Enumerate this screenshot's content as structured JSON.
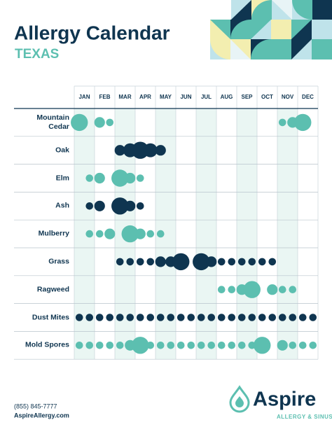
{
  "header": {
    "title": "Allergy Calendar",
    "subtitle": "TEXAS"
  },
  "months": [
    "JAN",
    "FEB",
    "MAR",
    "APR",
    "MAY",
    "JUN",
    "JUL",
    "AUG",
    "SEP",
    "OCT",
    "NOV",
    "DEC"
  ],
  "rows": [
    {
      "name": "Mountain Cedar",
      "color": "#5cbfb0",
      "levels": [
        4,
        null,
        2,
        1,
        null,
        null,
        null,
        null,
        null,
        null,
        null,
        null,
        null,
        null,
        null,
        null,
        null,
        null,
        null,
        null,
        1,
        2,
        4,
        null
      ]
    },
    {
      "name": "Oak",
      "color": "#0f3550",
      "levels": [
        null,
        null,
        null,
        null,
        2,
        3,
        4,
        3,
        2,
        null,
        null,
        null,
        null,
        null,
        null,
        null,
        null,
        null,
        null,
        null,
        null,
        null,
        null,
        null
      ]
    },
    {
      "name": "Elm",
      "color": "#5cbfb0",
      "levels": [
        null,
        1,
        2,
        null,
        4,
        2,
        1,
        null,
        null,
        null,
        null,
        null,
        null,
        null,
        null,
        null,
        null,
        null,
        null,
        null,
        null,
        null,
        null,
        null
      ]
    },
    {
      "name": "Ash",
      "color": "#0f3550",
      "levels": [
        null,
        1,
        2,
        null,
        4,
        2,
        1,
        null,
        null,
        null,
        null,
        null,
        null,
        null,
        null,
        null,
        null,
        null,
        null,
        null,
        null,
        null,
        null,
        null
      ]
    },
    {
      "name": "Mulberry",
      "color": "#5cbfb0",
      "levels": [
        null,
        1,
        1,
        2,
        null,
        4,
        2,
        1,
        1,
        null,
        null,
        null,
        null,
        null,
        null,
        null,
        null,
        null,
        null,
        null,
        null,
        null,
        null,
        null
      ]
    },
    {
      "name": "Grass",
      "color": "#0f3550",
      "levels": [
        null,
        null,
        null,
        null,
        1,
        1,
        1,
        1,
        2,
        2,
        4,
        null,
        4,
        2,
        1,
        1,
        1,
        1,
        1,
        1,
        null,
        null,
        null,
        null
      ]
    },
    {
      "name": "Ragweed",
      "color": "#5cbfb0",
      "levels": [
        null,
        null,
        null,
        null,
        null,
        null,
        null,
        null,
        null,
        null,
        null,
        null,
        null,
        null,
        1,
        1,
        2,
        4,
        null,
        2,
        1,
        1,
        null,
        null
      ]
    },
    {
      "name": "Dust Mites",
      "color": "#0f3550",
      "levels": [
        1,
        1,
        1,
        1,
        1,
        1,
        1,
        1,
        1,
        1,
        1,
        1,
        1,
        1,
        1,
        1,
        1,
        1,
        1,
        1,
        1,
        1,
        1,
        1
      ]
    },
    {
      "name": "Mold Spores",
      "color": "#5cbfb0",
      "levels": [
        1,
        1,
        1,
        1,
        1,
        2,
        4,
        1,
        1,
        1,
        1,
        1,
        1,
        1,
        1,
        1,
        1,
        1,
        4,
        null,
        2,
        1,
        1,
        1
      ]
    }
  ],
  "footer": {
    "phone": "(855) 845-7777",
    "website": "AspireAllergy.com",
    "brand": "Aspire",
    "tagline": "ALLERGY & SINUS"
  }
}
